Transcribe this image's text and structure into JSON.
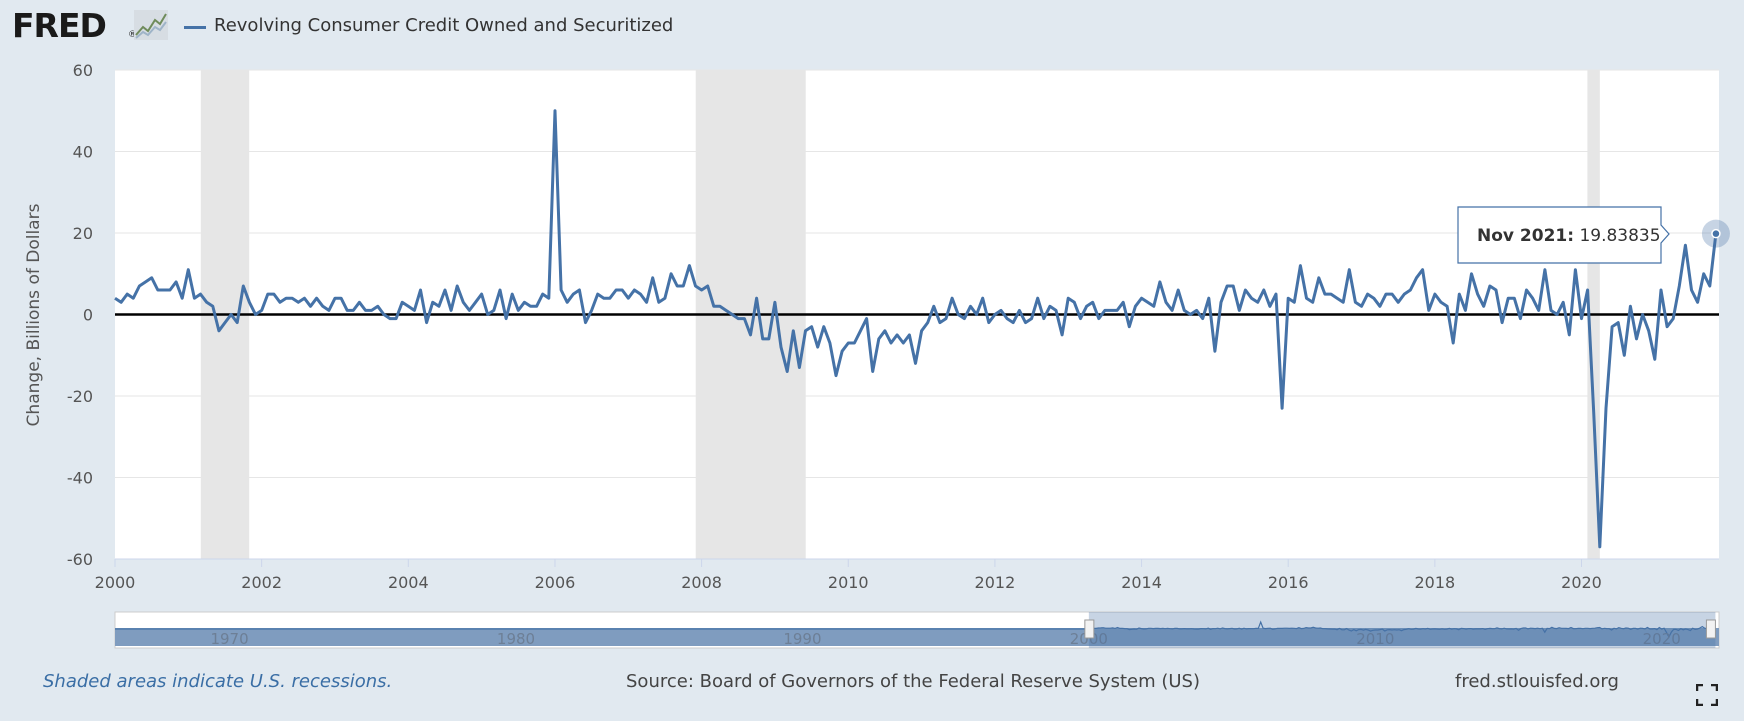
{
  "header": {
    "logo": "FRED",
    "logo_mark": "®",
    "series_title": "Revolving Consumer Credit Owned and Securitized"
  },
  "tooltip": {
    "date": "Nov 2021:",
    "value": "19.83835"
  },
  "footer": {
    "note": "Shaded areas indicate U.S. recessions.",
    "source": "Source: Board of Governors of the Federal Reserve System (US)",
    "site": "fred.stlouisfed.org"
  },
  "icons": {
    "fullscreen": "fullscreen-icon",
    "logo_graph": "line-graph-icon"
  },
  "colors": {
    "series": "#4572a7",
    "recession": "#e6e6e6",
    "zero_line": "#000000",
    "background": "#e1e9f0",
    "plot": "#ffffff"
  },
  "navigator": {
    "ticks": [
      "1970",
      "1980",
      "1990",
      "2000",
      "2010",
      "2020"
    ],
    "range_start": 2000,
    "range_end": 2021.875
  },
  "chart_data": {
    "type": "line",
    "title": "",
    "xlabel": "",
    "ylabel": "Change, Billions of Dollars",
    "xlim": [
      2000,
      2021.875
    ],
    "ylim": [
      -60,
      60
    ],
    "grid": true,
    "x_ticks": [
      "2000",
      "2002",
      "2004",
      "2006",
      "2008",
      "2010",
      "2012",
      "2014",
      "2016",
      "2018",
      "2020"
    ],
    "y_ticks": [
      "60",
      "40",
      "20",
      "0",
      "-20",
      "-40",
      "-60"
    ],
    "recessions": [
      [
        2001.17,
        2001.83
      ],
      [
        2007.92,
        2009.42
      ],
      [
        2020.08,
        2020.25
      ]
    ],
    "x_start": "2000-01",
    "frequency": "monthly",
    "series": [
      {
        "values": [
          4,
          3,
          5,
          4,
          7,
          8,
          9,
          6,
          6,
          6,
          8,
          4,
          11,
          4,
          5,
          3,
          2,
          -4,
          -2,
          0,
          -2,
          7,
          3,
          0,
          1,
          5,
          5,
          3,
          4,
          4,
          3,
          4,
          2,
          4,
          2,
          1,
          4,
          4,
          1,
          1,
          3,
          1,
          1,
          2,
          0,
          -1,
          -1,
          3,
          2,
          1,
          6,
          -2,
          3,
          2,
          6,
          1,
          7,
          3,
          1,
          3,
          5,
          0,
          1,
          6,
          -1,
          5,
          1,
          3,
          2,
          2,
          5,
          4,
          50,
          6,
          3,
          5,
          6,
          -2,
          1,
          5,
          4,
          4,
          6,
          6,
          4,
          6,
          5,
          3,
          9,
          3,
          4,
          10,
          7,
          7,
          12,
          7,
          6,
          7,
          2,
          2,
          1,
          0,
          -1,
          -1,
          -5,
          4,
          -6,
          -6,
          3,
          -8,
          -14,
          -4,
          -13,
          -4,
          -3,
          -8,
          -3,
          -7,
          -15,
          -9,
          -7,
          -7,
          -4,
          -1,
          -14,
          -6,
          -4,
          -7,
          -5,
          -7,
          -5,
          -12,
          -4,
          -2,
          2,
          -2,
          -1,
          4,
          0,
          -1,
          2,
          0,
          4,
          -2,
          0,
          1,
          -1,
          -2,
          1,
          -2,
          -1,
          4,
          -1,
          2,
          1,
          -5,
          4,
          3,
          -1,
          2,
          3,
          -1,
          1,
          1,
          1,
          3,
          -3,
          2,
          4,
          3,
          2,
          8,
          3,
          1,
          6,
          1,
          0,
          1,
          -1,
          4,
          -9,
          3,
          7,
          7,
          1,
          6,
          4,
          3,
          6,
          2,
          5,
          -23,
          4,
          3,
          12,
          4,
          3,
          9,
          5,
          5,
          4,
          3,
          11,
          3,
          2,
          5,
          4,
          2,
          5,
          5,
          3,
          5,
          6,
          9,
          11,
          1,
          5,
          3,
          2,
          -7,
          5,
          1,
          10,
          5,
          2,
          7,
          6,
          -2,
          4,
          4,
          -1,
          6,
          4,
          1,
          11,
          1,
          0,
          3,
          -5,
          11,
          -1,
          6,
          -24,
          -57,
          -23,
          -3,
          -2,
          -10,
          2,
          -6,
          0,
          -4,
          -11,
          6,
          -3,
          -1,
          7,
          17,
          6,
          3,
          10,
          7,
          19.83835
        ]
      }
    ]
  }
}
